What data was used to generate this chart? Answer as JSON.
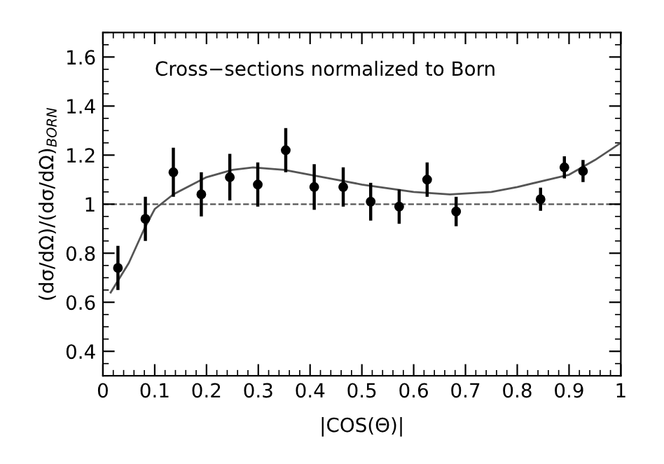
{
  "chart_data": {
    "type": "scatter",
    "xlabel": "|COS(Θ)|",
    "ylabel": "(dσ/dΩ)/(dσ/dΩ)$_{BORN}$",
    "annotations": [
      "Cross−sections normalized to Born"
    ],
    "xlim": [
      0,
      1
    ],
    "ylim": [
      0.3,
      1.7
    ],
    "xticks": [
      0,
      0.1,
      0.2,
      0.3,
      0.4,
      0.5,
      0.6,
      0.7,
      0.8,
      0.9,
      1
    ],
    "yticks": [
      0.4,
      0.6,
      0.8,
      {
        "value": 1.0,
        "label": "1"
      },
      1.2,
      1.4,
      1.6
    ],
    "ref_lines": [
      {
        "axis": "y",
        "value": 1.0,
        "line_style": "dashed",
        "color": "#555555"
      }
    ],
    "marker": "circle",
    "grid": false,
    "legend": false,
    "series": [
      {
        "color": "#000000",
        "x": [
          0.029,
          0.082,
          0.136,
          0.19,
          0.245,
          0.299,
          0.353,
          0.408,
          0.464,
          0.517,
          0.572,
          0.626,
          0.682,
          0.845,
          0.891,
          0.927
        ],
        "values": [
          0.74,
          0.94,
          1.13,
          1.04,
          1.11,
          1.08,
          1.22,
          1.07,
          1.07,
          1.01,
          0.99,
          1.1,
          0.97,
          1.02,
          1.15,
          1.135
        ],
        "errors": [
          0.09,
          0.09,
          0.1,
          0.09,
          0.095,
          0.09,
          0.09,
          0.093,
          0.08,
          0.077,
          0.07,
          0.07,
          0.06,
          0.047,
          0.045,
          0.045
        ]
      },
      {
        "type": "line",
        "color": "#555555",
        "line_style": "solid",
        "marker": "none",
        "x": [
          0.015,
          0.05,
          0.08,
          0.1,
          0.136,
          0.2,
          0.25,
          0.29,
          0.35,
          0.4,
          0.5,
          0.6,
          0.67,
          0.75,
          0.8,
          0.9,
          0.95,
          1.0
        ],
        "values": [
          0.64,
          0.76,
          0.9,
          0.98,
          1.04,
          1.11,
          1.14,
          1.15,
          1.14,
          1.12,
          1.08,
          1.05,
          1.04,
          1.05,
          1.07,
          1.12,
          1.18,
          1.25
        ]
      }
    ]
  }
}
